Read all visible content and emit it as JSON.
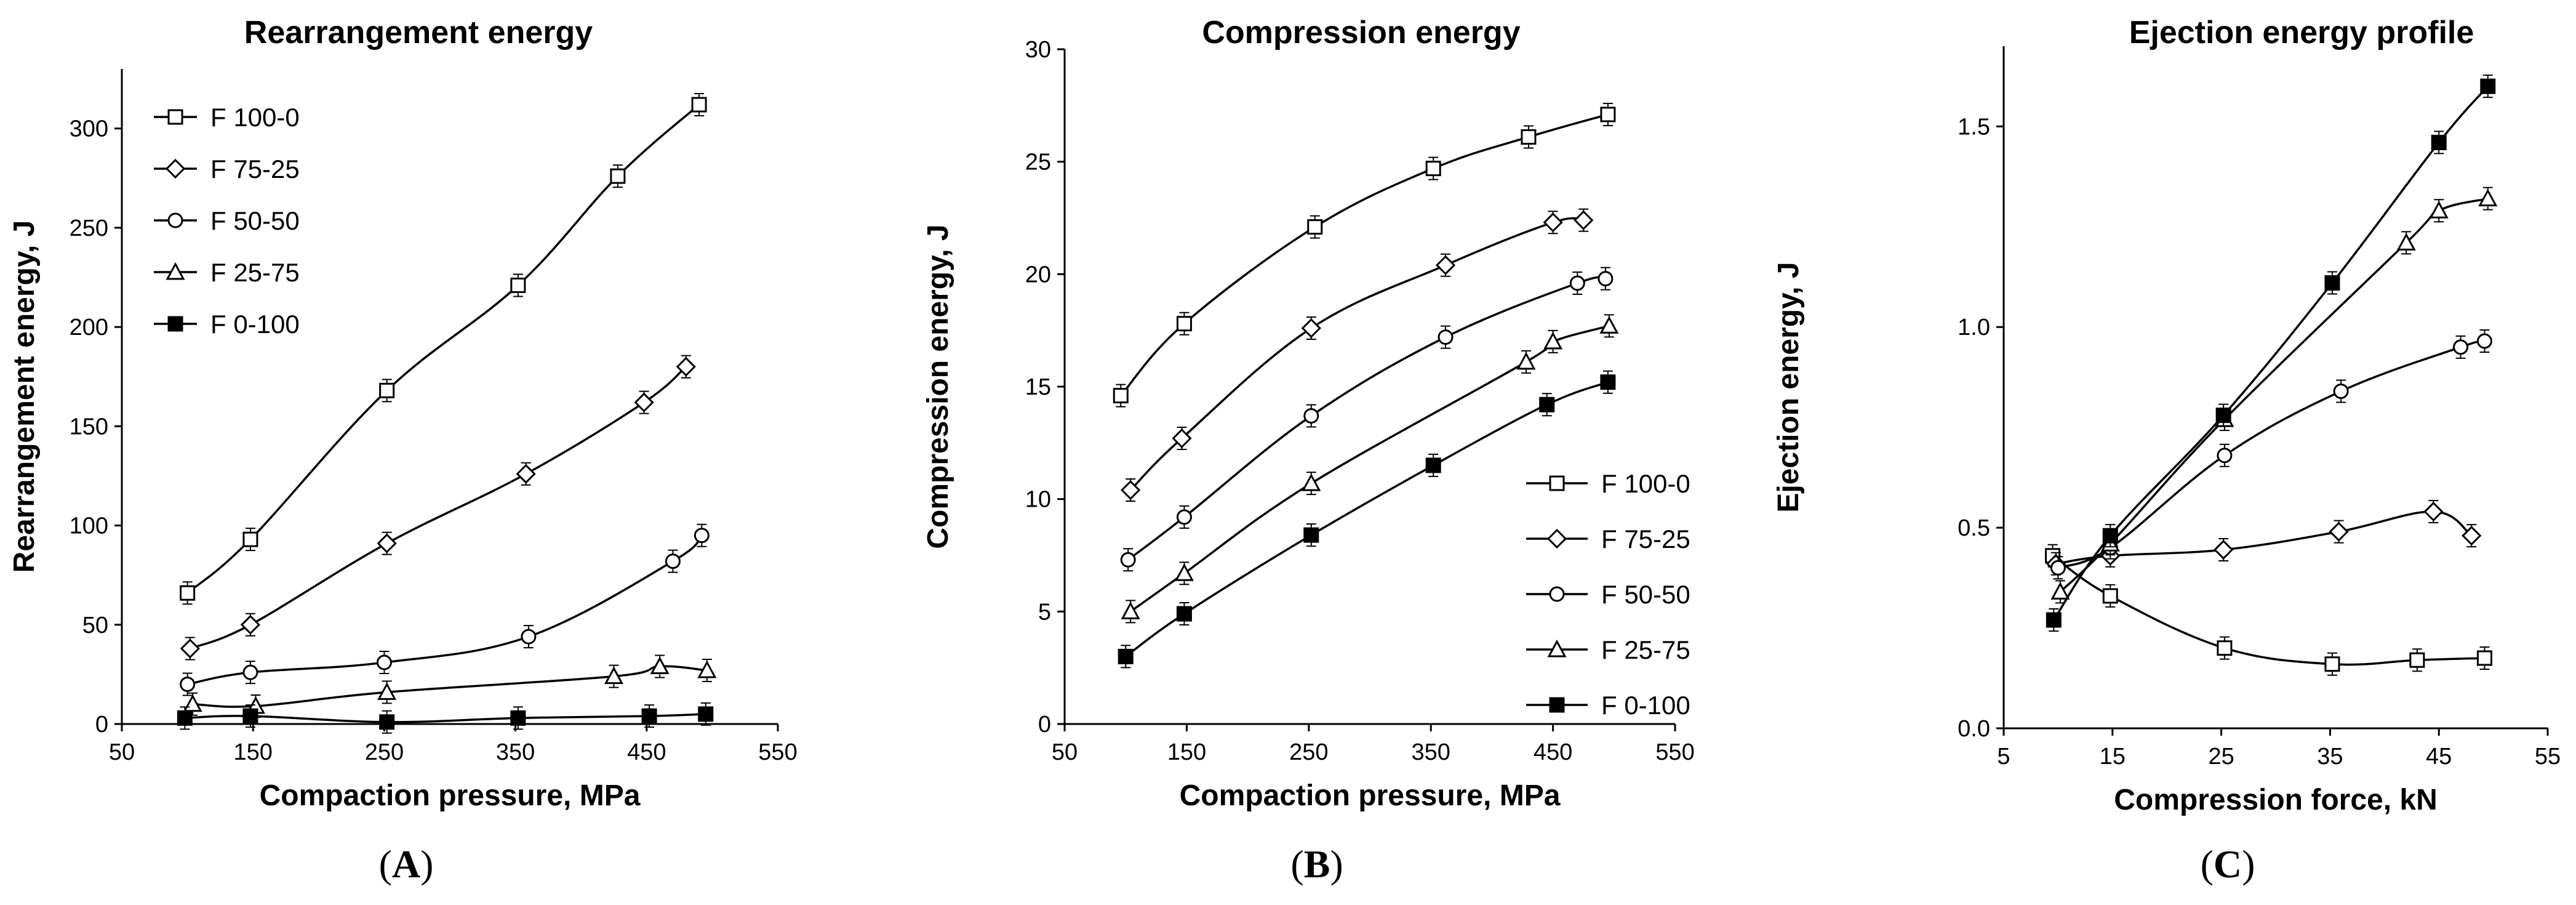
{
  "chart_data": [
    {
      "type": "line",
      "panel": "(A)",
      "panel_letter": "A",
      "title": "Rearrangement energy",
      "xlabel": "Compaction pressure, MPa",
      "ylabel": "Rearrangement energy, J",
      "xlim": [
        50,
        550
      ],
      "ylim": [
        0,
        330
      ],
      "xticks": [
        50,
        150,
        250,
        350,
        450,
        550
      ],
      "yticks": [
        0,
        50,
        100,
        150,
        200,
        250,
        300
      ],
      "ytick_decimals": 0,
      "legend_position": "top-left",
      "series": [
        {
          "name": "F 100-0",
          "marker": "square",
          "x": [
            100,
            148,
            252,
            352,
            428,
            490
          ],
          "y": [
            66,
            93,
            168,
            221,
            276,
            312
          ]
        },
        {
          "name": "F 75-25",
          "marker": "diamond",
          "x": [
            102,
            148,
            252,
            358,
            448,
            480
          ],
          "y": [
            38,
            50,
            91,
            126,
            162,
            180
          ]
        },
        {
          "name": "F 50-50",
          "marker": "circle",
          "x": [
            100,
            148,
            250,
            360,
            470,
            492
          ],
          "y": [
            20,
            26,
            31,
            44,
            82,
            95
          ]
        },
        {
          "name": "F 25-75",
          "marker": "triangle",
          "x": [
            104,
            152,
            252,
            425,
            460,
            496
          ],
          "y": [
            10,
            9,
            16,
            24,
            29,
            27
          ]
        },
        {
          "name": "F 0-100",
          "marker": "filled-square",
          "x": [
            98,
            148,
            252,
            352,
            452,
            495
          ],
          "y": [
            3,
            4,
            1,
            3,
            4,
            5
          ]
        }
      ]
    },
    {
      "type": "line",
      "panel": "(B)",
      "panel_letter": "B",
      "title": "Compression energy",
      "xlabel": "Compaction pressure, MPa",
      "ylabel": "Compression energy, J",
      "xlim": [
        50,
        550
      ],
      "ylim": [
        0,
        30
      ],
      "xticks": [
        50,
        150,
        250,
        350,
        450,
        550
      ],
      "yticks": [
        0,
        5,
        10,
        15,
        20,
        25,
        30
      ],
      "ytick_decimals": 0,
      "legend_position": "bottom-right",
      "series": [
        {
          "name": "F 100-0",
          "marker": "square",
          "x": [
            96,
            148,
            255,
            352,
            430,
            495
          ],
          "y": [
            14.6,
            17.8,
            22.1,
            24.7,
            26.1,
            27.1
          ]
        },
        {
          "name": "F 75-25",
          "marker": "diamond",
          "x": [
            104,
            146,
            252,
            362,
            450,
            475
          ],
          "y": [
            10.4,
            12.7,
            17.6,
            20.4,
            22.3,
            22.4
          ]
        },
        {
          "name": "F 50-50",
          "marker": "circle",
          "x": [
            102,
            148,
            252,
            362,
            470,
            493
          ],
          "y": [
            7.3,
            9.2,
            13.7,
            17.2,
            19.6,
            19.8
          ]
        },
        {
          "name": "F 25-75",
          "marker": "triangle",
          "x": [
            104,
            148,
            252,
            428,
            450,
            496
          ],
          "y": [
            5.0,
            6.7,
            10.7,
            16.1,
            17.0,
            17.7
          ]
        },
        {
          "name": "F 0-100",
          "marker": "filled-square",
          "x": [
            100,
            148,
            252,
            352,
            445,
            495
          ],
          "y": [
            3.0,
            4.9,
            8.4,
            11.5,
            14.2,
            15.2
          ]
        }
      ]
    },
    {
      "type": "line",
      "panel": "(C)",
      "panel_letter": "C",
      "title": "Ejection energy profile",
      "xlabel": "Compression force, kN",
      "ylabel": "Ejection energy, J",
      "xlim": [
        5,
        55
      ],
      "ylim": [
        0,
        1.7
      ],
      "xticks": [
        5,
        15,
        25,
        35,
        45,
        55
      ],
      "yticks": [
        0.0,
        0.5,
        1.0,
        1.5
      ],
      "ytick_decimals": 1,
      "legend_position": "none",
      "series": [
        {
          "name": "F 100-0",
          "marker": "square",
          "x": [
            9.5,
            14.8,
            25.3,
            35.2,
            43.0,
            49.2
          ],
          "y": [
            0.43,
            0.33,
            0.2,
            0.16,
            0.17,
            0.175
          ]
        },
        {
          "name": "F 75-25",
          "marker": "diamond",
          "x": [
            9.8,
            14.8,
            25.2,
            35.8,
            44.5,
            48.0
          ],
          "y": [
            0.41,
            0.43,
            0.445,
            0.49,
            0.54,
            0.48
          ]
        },
        {
          "name": "F 50-50",
          "marker": "circle",
          "x": [
            10.0,
            14.8,
            25.3,
            36.0,
            47.0,
            49.2
          ],
          "y": [
            0.4,
            0.45,
            0.68,
            0.84,
            0.95,
            0.965
          ]
        },
        {
          "name": "F 25-75",
          "marker": "triangle",
          "x": [
            10.2,
            14.8,
            25.3,
            42.0,
            45.0,
            49.5
          ],
          "y": [
            0.34,
            0.46,
            0.77,
            1.21,
            1.29,
            1.32
          ]
        },
        {
          "name": "F 0-100",
          "marker": "filled-square",
          "x": [
            9.6,
            14.8,
            25.2,
            35.2,
            45.0,
            49.5
          ],
          "y": [
            0.27,
            0.48,
            0.78,
            1.11,
            1.46,
            1.6
          ]
        }
      ]
    }
  ]
}
